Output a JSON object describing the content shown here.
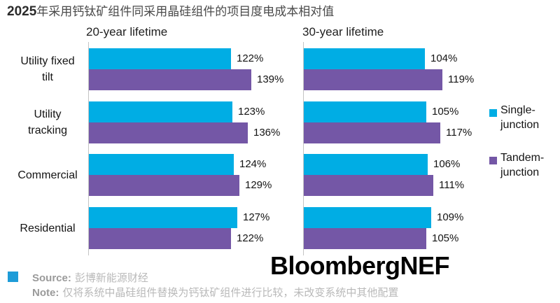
{
  "title": {
    "bold": "2025",
    "rest": "年采用钙钛矿组件同采用晶硅组件的项目度电成本相对值"
  },
  "chart_data": {
    "type": "bar",
    "orientation": "horizontal",
    "unit": "%",
    "axis_baseline": 0,
    "grid": false,
    "categories": [
      "Utility fixed tilt",
      "Utility tracking",
      "Commercial",
      "Residential"
    ],
    "category_display_lines": [
      [
        "Utility fixed",
        "tilt"
      ],
      [
        "Utility",
        "tracking"
      ],
      [
        "Commercial"
      ],
      [
        "Residential"
      ]
    ],
    "panels": [
      {
        "title": "20-year lifetime",
        "series": [
          {
            "name": "Single-junction",
            "color": "#00ADE4",
            "values": [
              122,
              123,
              124,
              127
            ]
          },
          {
            "name": "Tandem-junction",
            "color": "#7457A6",
            "values": [
              139,
              136,
              129,
              122
            ]
          }
        ]
      },
      {
        "title": "30-year lifetime",
        "series": [
          {
            "name": "Single-junction",
            "color": "#00ADE4",
            "values": [
              104,
              105,
              106,
              109
            ]
          },
          {
            "name": "Tandem-junction",
            "color": "#7457A6",
            "values": [
              119,
              117,
              111,
              105
            ]
          }
        ]
      }
    ],
    "value_labels_shown": true,
    "legend_position": "right"
  },
  "legend": {
    "items": [
      {
        "lines": [
          "Single-",
          "junction"
        ],
        "color": "#00ADE4"
      },
      {
        "lines": [
          "Tandem-",
          "junction"
        ],
        "color": "#7457A6"
      }
    ]
  },
  "footer": {
    "marker_color": "#1E9CD8",
    "source_label": "Source:",
    "source_text": "彭博新能源财经",
    "note_label": "Note:",
    "note_text": "仅将系统中晶硅组件替换为钙钛矿组件进行比较，未改变系统中其他配置"
  },
  "logo": "BloombergNEF",
  "colors": {
    "single_junction": "#00ADE4",
    "tandem_junction": "#7457A6",
    "axis_line": "#C4C4C4"
  }
}
